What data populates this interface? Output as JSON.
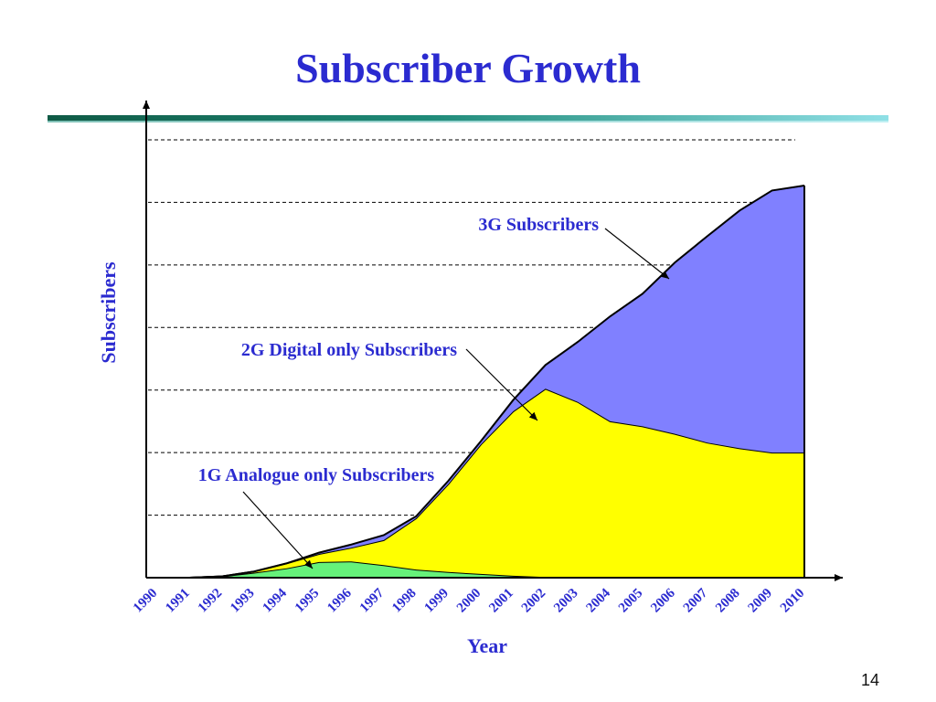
{
  "slide": {
    "title": "Subscriber Growth",
    "page_number": "14"
  },
  "colors": {
    "title": "#2b2bd0",
    "series_1g": "#66f27a",
    "series_2g": "#ffff00",
    "series_3g": "#8080ff",
    "outline": "#000000"
  },
  "chart_data": {
    "type": "area",
    "stacked": true,
    "xlabel": "Year",
    "ylabel": "Subscribers",
    "x": [
      "1990",
      "1991",
      "1992",
      "1993",
      "1994",
      "1995",
      "1996",
      "1997",
      "1998",
      "1999",
      "2000",
      "2001",
      "2002",
      "2003",
      "2004",
      "2005",
      "2006",
      "2007",
      "2008",
      "2009",
      "2010"
    ],
    "ylim": [
      0,
      700
    ],
    "y_tick_labels_shown": false,
    "grid": {
      "horizontal_dashed": true,
      "gridline_values": [
        100,
        200,
        300,
        400,
        500,
        600,
        700
      ]
    },
    "series": [
      {
        "name": "1G Analogue only Subscribers",
        "color": "#66f27a",
        "values": [
          0,
          0,
          2,
          8,
          15,
          25,
          26,
          20,
          13,
          9,
          6,
          3,
          1,
          0,
          0,
          0,
          0,
          0,
          0,
          0,
          0
        ]
      },
      {
        "name": "2G Digital only Subscribers",
        "color": "#ffff00",
        "values": [
          0,
          0,
          0,
          2,
          8,
          13,
          22,
          40,
          82,
          141,
          207,
          263,
          301,
          281,
          250,
          242,
          230,
          216,
          207,
          200,
          200
        ]
      },
      {
        "name": "3G Subscribers",
        "color": "#8080ff",
        "values": [
          0,
          0,
          0,
          0,
          0,
          2,
          5,
          8,
          3,
          5,
          5,
          18,
          38,
          96,
          168,
          212,
          274,
          330,
          380,
          419,
          427
        ]
      }
    ],
    "annotations": [
      {
        "text": "3G Subscribers",
        "series": "3G Subscribers"
      },
      {
        "text": "2G Digital only Subscribers",
        "series": "2G Digital only Subscribers"
      },
      {
        "text": "1G Analogue only Subscribers",
        "series": "1G Analogue only Subscribers"
      }
    ]
  }
}
